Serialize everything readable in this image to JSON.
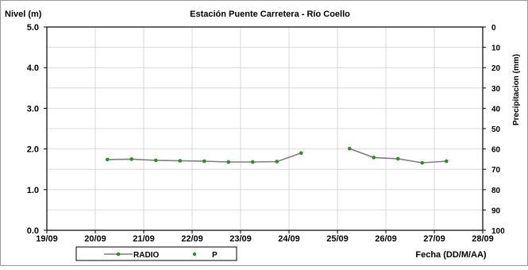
{
  "chart_data": {
    "type": "line",
    "title": "Estación Puente Carretera - Río Coello",
    "ylabel": "Nivel (m)",
    "y2label": "Precipitacion (mm)",
    "xlabel": "Fecha (DD/M/AA)",
    "ylim": [
      0,
      5
    ],
    "y_ticks": [
      "0.0",
      "1.0",
      "2.0",
      "3.0",
      "4.0",
      "5.0"
    ],
    "y2lim": [
      0,
      100
    ],
    "y2_inverted": true,
    "y2_ticks": [
      "0",
      "10",
      "20",
      "30",
      "40",
      "50",
      "60",
      "70",
      "80",
      "90",
      "100"
    ],
    "x_ticks": [
      "19/09",
      "20/09",
      "21/09",
      "22/09",
      "23/09",
      "24/09",
      "25/09",
      "26/09",
      "27/09",
      "28/09"
    ],
    "grid": true,
    "legend_position": "bottom-left",
    "series": [
      {
        "name": "RADIO",
        "color": "#7f7f7f",
        "marker_color": "#2e8b2e",
        "points": [
          {
            "x": "20/09 06:00",
            "y": 1.74
          },
          {
            "x": "20/09 18:00",
            "y": 1.75
          },
          {
            "x": "21/09 06:00",
            "y": 1.72
          },
          {
            "x": "21/09 18:00",
            "y": 1.71
          },
          {
            "x": "22/09 06:00",
            "y": 1.7
          },
          {
            "x": "22/09 18:00",
            "y": 1.68
          },
          {
            "x": "23/09 06:00",
            "y": 1.68
          },
          {
            "x": "23/09 18:00",
            "y": 1.69
          },
          {
            "x": "24/09 06:00",
            "y": 1.9
          },
          {
            "x": "25/09 06:00",
            "y": 2.01,
            "break_before": true
          },
          {
            "x": "25/09 18:00",
            "y": 1.79
          },
          {
            "x": "26/09 06:00",
            "y": 1.76
          },
          {
            "x": "26/09 18:00",
            "y": 1.66
          },
          {
            "x": "27/09 06:00",
            "y": 1.7
          }
        ]
      },
      {
        "name": "P",
        "color": "#2e8b2e",
        "points": []
      }
    ]
  }
}
